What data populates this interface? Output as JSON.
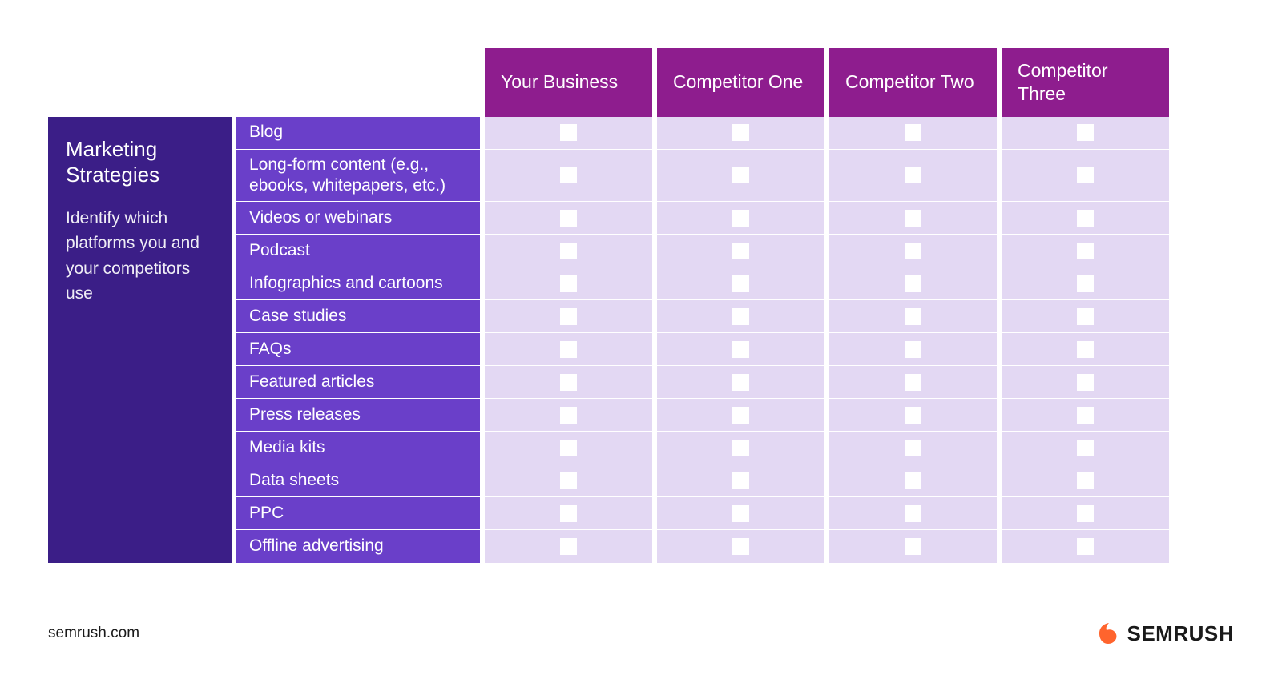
{
  "colors": {
    "sidebar_bg": "#3b1e87",
    "row_label_bg": "#6a3fc9",
    "col_header_bg": "#8e1d8e",
    "cell_bg": "#e3d8f3",
    "checkbox_bg": "#ffffff",
    "text_white": "#ffffff",
    "footer_text": "#1a1a1a",
    "logo_orange": "#ff642d"
  },
  "sidebar": {
    "title": "Marketing Strategies",
    "description": "Identify which platforms you and your competitors use"
  },
  "columns": [
    "Your Business",
    "Competitor One",
    "Competitor Two",
    "Competitor Three"
  ],
  "rows": [
    "Blog",
    "Long-form content (e.g., ebooks, whitepapers, etc.)",
    "Videos or webinars",
    "Podcast",
    "Infographics and cartoons",
    "Case studies",
    "FAQs",
    "Featured articles",
    "Press releases",
    "Media kits",
    "Data sheets",
    "PPC",
    "Offline advertising"
  ],
  "footer": {
    "url": "semrush.com",
    "brand": "SEMRUSH"
  },
  "layout": {
    "tall_row_indices": [
      1
    ]
  }
}
